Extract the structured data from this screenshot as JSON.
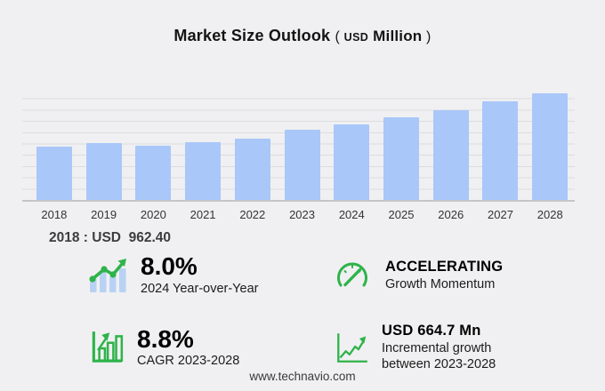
{
  "title": {
    "main": "Market Size Outlook",
    "unit_open": "( ",
    "unit_currency": "USD",
    "unit_scale": " Million",
    "unit_close": " )"
  },
  "chart_data": {
    "type": "bar",
    "title": "Market Size Outlook (USD Million)",
    "categories": [
      "2018",
      "2019",
      "2020",
      "2021",
      "2022",
      "2023",
      "2024",
      "2025",
      "2026",
      "2027",
      "2028"
    ],
    "values": [
      962.4,
      1035,
      980,
      1040,
      1115,
      1267.2,
      1368.6,
      1495,
      1628,
      1790,
      1931.9
    ],
    "xlabel": "",
    "ylabel": "USD Million",
    "ylim": [
      0,
      2040
    ],
    "gridline_intervals": 10,
    "grid": "horizontal",
    "legend": "none",
    "annotation": "2018 : USD  962.40"
  },
  "annotation_2018": "2018 : USD  962.40",
  "stats": [
    {
      "icon": "trend-bars-icon",
      "value": "8.0%",
      "label1": "2024 Year-over-Year",
      "label2": ""
    },
    {
      "icon": "gauge-icon",
      "value": "ACCELERATING",
      "label1": "Growth Momentum",
      "label2": ""
    },
    {
      "icon": "axis-bars-arrow-icon",
      "value": "8.8%",
      "label1": "CAGR 2023-2028",
      "label2": ""
    },
    {
      "icon": "growth-line-icon",
      "value": "USD 664.7 Mn",
      "label1": "Incremental growth",
      "label2": "between 2023-2028"
    }
  ],
  "footer": {
    "website": "www.technavio.com"
  },
  "colors": {
    "background": "#f0f0f2",
    "bar": "#a9c7f8",
    "icon_bar_blue": "#b9d2f4",
    "green": "#2fb34a",
    "gridline": "#dcdce0",
    "baseline": "#c5c5c9"
  }
}
